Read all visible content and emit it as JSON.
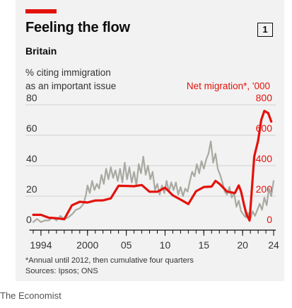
{
  "header": {
    "title": "Feeling the flow",
    "chart_number": "1",
    "subtitle": "Britain"
  },
  "axes": {
    "left_label_line1": "% citing immigration",
    "left_label_line2": "as an important issue",
    "right_label": "Net migration*, '000"
  },
  "footnote": {
    "line1": "*Annual until 2012, then cumulative four quarters",
    "line2": "Sources: Ipsos; ONS"
  },
  "credit": "The Economist",
  "colors": {
    "net_migration": "#e3120b",
    "immigration_concern": "#a9a9a2",
    "background": "#f2f2f2"
  },
  "chart_data": {
    "type": "line",
    "title": "Feeling the flow",
    "subtitle": "Britain",
    "x_range": [
      1992,
      2025
    ],
    "x_tick_labels": [
      {
        "x": 1994,
        "label": "1994"
      },
      {
        "x": 2000,
        "label": "2000"
      },
      {
        "x": 2005,
        "label": "05"
      },
      {
        "x": 2010,
        "label": "10"
      },
      {
        "x": 2015,
        "label": "15"
      },
      {
        "x": 2020,
        "label": "20"
      },
      {
        "x": 2024,
        "label": "24"
      }
    ],
    "x_minor_ticks": [
      1993,
      1994,
      1995,
      1996,
      1997,
      1998,
      1999,
      2000,
      2001,
      2002,
      2003,
      2004,
      2005,
      2006,
      2007,
      2008,
      2009,
      2010,
      2011,
      2012,
      2013,
      2014,
      2015,
      2016,
      2017,
      2018,
      2019,
      2020,
      2021,
      2022,
      2023,
      2024
    ],
    "y_left": {
      "label": "% citing immigration as an important issue",
      "range": [
        0,
        80
      ],
      "ticks": [
        "0",
        "20",
        "40",
        "60",
        "80"
      ]
    },
    "y_right": {
      "label": "Net migration*, '000",
      "range": [
        0,
        800
      ],
      "ticks": [
        "0",
        "200",
        "400",
        "600",
        "800"
      ]
    },
    "grid": true,
    "series": [
      {
        "name": "% citing immigration as an important issue",
        "axis": "left",
        "color": "#a9a9a2",
        "points": [
          [
            1993.0,
            3
          ],
          [
            1993.5,
            5
          ],
          [
            1994.0,
            3
          ],
          [
            1994.5,
            4
          ],
          [
            1995.0,
            4
          ],
          [
            1995.5,
            6
          ],
          [
            1996.0,
            4
          ],
          [
            1996.5,
            7
          ],
          [
            1997.0,
            5
          ],
          [
            1997.5,
            6
          ],
          [
            1998.0,
            8
          ],
          [
            1998.5,
            11
          ],
          [
            1999.0,
            12
          ],
          [
            1999.5,
            15
          ],
          [
            1999.8,
            21
          ],
          [
            2000.0,
            27
          ],
          [
            2000.3,
            22
          ],
          [
            2000.6,
            30
          ],
          [
            2000.9,
            24
          ],
          [
            2001.2,
            28
          ],
          [
            2001.5,
            25
          ],
          [
            2001.8,
            34
          ],
          [
            2002.1,
            28
          ],
          [
            2002.4,
            38
          ],
          [
            2002.7,
            31
          ],
          [
            2003.0,
            39
          ],
          [
            2003.3,
            32
          ],
          [
            2003.6,
            37
          ],
          [
            2003.9,
            30
          ],
          [
            2004.2,
            38
          ],
          [
            2004.5,
            29
          ],
          [
            2004.8,
            42
          ],
          [
            2005.1,
            31
          ],
          [
            2005.4,
            39
          ],
          [
            2005.7,
            29
          ],
          [
            2006.0,
            36
          ],
          [
            2006.3,
            27
          ],
          [
            2006.6,
            41
          ],
          [
            2006.9,
            35
          ],
          [
            2007.2,
            46
          ],
          [
            2007.5,
            34
          ],
          [
            2007.8,
            40
          ],
          [
            2008.1,
            31
          ],
          [
            2008.4,
            36
          ],
          [
            2008.7,
            24
          ],
          [
            2009.0,
            28
          ],
          [
            2009.3,
            21
          ],
          [
            2009.6,
            27
          ],
          [
            2009.9,
            22
          ],
          [
            2010.2,
            30
          ],
          [
            2010.5,
            23
          ],
          [
            2010.8,
            29
          ],
          [
            2011.1,
            24
          ],
          [
            2011.4,
            29
          ],
          [
            2011.7,
            21
          ],
          [
            2012.0,
            26
          ],
          [
            2012.3,
            20
          ],
          [
            2012.6,
            25
          ],
          [
            2012.9,
            23
          ],
          [
            2013.2,
            30
          ],
          [
            2013.5,
            36
          ],
          [
            2013.8,
            33
          ],
          [
            2014.1,
            41
          ],
          [
            2014.4,
            35
          ],
          [
            2014.7,
            43
          ],
          [
            2015.0,
            38
          ],
          [
            2015.3,
            44
          ],
          [
            2015.6,
            48
          ],
          [
            2015.9,
            56
          ],
          [
            2016.2,
            42
          ],
          [
            2016.5,
            48
          ],
          [
            2016.8,
            38
          ],
          [
            2017.1,
            34
          ],
          [
            2017.4,
            29
          ],
          [
            2017.7,
            23
          ],
          [
            2018.0,
            21
          ],
          [
            2018.3,
            26
          ],
          [
            2018.6,
            19
          ],
          [
            2018.9,
            22
          ],
          [
            2019.2,
            13
          ],
          [
            2019.5,
            17
          ],
          [
            2019.8,
            10
          ],
          [
            2020.1,
            8
          ],
          [
            2020.4,
            6
          ],
          [
            2020.7,
            9
          ],
          [
            2021.0,
            5
          ],
          [
            2021.3,
            10
          ],
          [
            2021.6,
            7
          ],
          [
            2021.9,
            11
          ],
          [
            2022.2,
            15
          ],
          [
            2022.5,
            11
          ],
          [
            2022.8,
            19
          ],
          [
            2023.1,
            14
          ],
          [
            2023.4,
            25
          ],
          [
            2023.7,
            20
          ],
          [
            2024.0,
            30
          ]
        ]
      },
      {
        "name": "Net migration*, '000",
        "axis": "right",
        "color": "#e3120b",
        "points": [
          [
            1993,
            77
          ],
          [
            1994,
            77
          ],
          [
            1995,
            58
          ],
          [
            1996,
            55
          ],
          [
            1997,
            48
          ],
          [
            1998,
            140
          ],
          [
            1999,
            163
          ],
          [
            2000,
            158
          ],
          [
            2001,
            171
          ],
          [
            2002,
            172
          ],
          [
            2003,
            185
          ],
          [
            2004,
            268
          ],
          [
            2005,
            267
          ],
          [
            2006,
            265
          ],
          [
            2007,
            273
          ],
          [
            2008,
            229
          ],
          [
            2009,
            229
          ],
          [
            2010,
            256
          ],
          [
            2011,
            205
          ],
          [
            2012,
            177
          ],
          [
            2013,
            148
          ],
          [
            2014,
            232
          ],
          [
            2015,
            260
          ],
          [
            2016,
            263
          ],
          [
            2016.5,
            300
          ],
          [
            2017,
            282
          ],
          [
            2018,
            230
          ],
          [
            2019,
            220
          ],
          [
            2019.5,
            270
          ],
          [
            2019.8,
            230
          ],
          [
            2020.2,
            140
          ],
          [
            2020.5,
            80
          ],
          [
            2020.9,
            40
          ],
          [
            2021.2,
            250
          ],
          [
            2021.5,
            460
          ],
          [
            2022.0,
            565
          ],
          [
            2022.4,
            700
          ],
          [
            2022.8,
            760
          ],
          [
            2023.3,
            745
          ],
          [
            2023.7,
            690
          ]
        ]
      }
    ]
  }
}
